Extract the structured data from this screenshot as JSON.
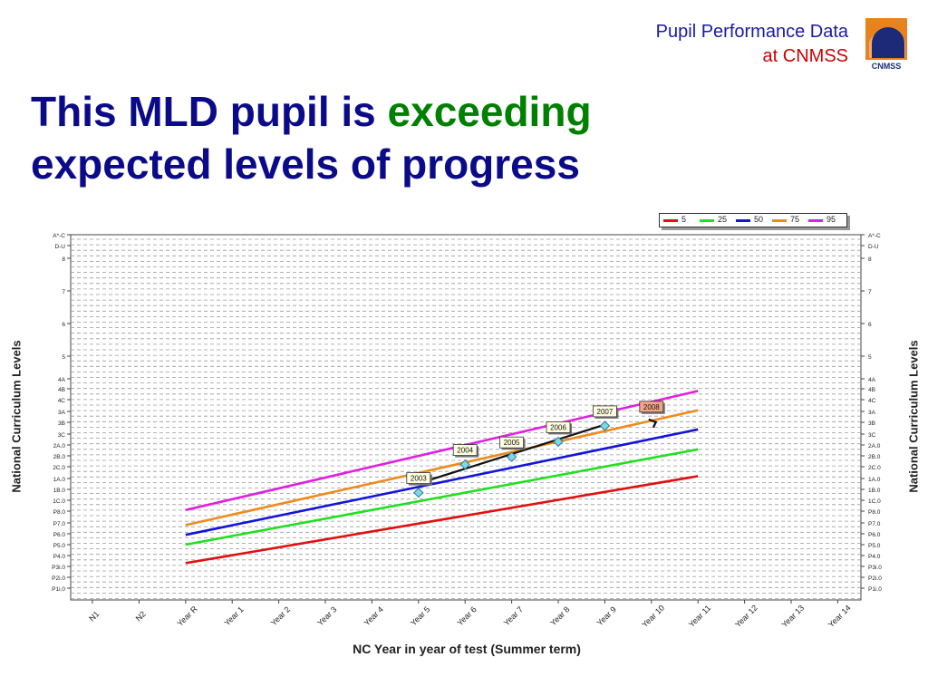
{
  "header": {
    "brand_line1": "Pupil Performance Data",
    "brand_line2": "at CNMSS",
    "logo_text": "CNMSS",
    "logo_colors": {
      "orange": "#e8821e",
      "navy": "#1c2a78"
    }
  },
  "slide": {
    "title_part1": "This MLD pupil is ",
    "title_highlight": "exceeding",
    "title_part2": "expected levels of progress",
    "title_color": "#0b0b8a",
    "highlight_color": "#008000"
  },
  "chart_data": {
    "type": "line",
    "xlabel": "NC Year in year of test (Summer term)",
    "ylabel": "National Curriculum Levels",
    "categories": [
      "N1",
      "N2",
      "Year R",
      "Year 1",
      "Year 2",
      "Year 3",
      "Year 4",
      "Year 5",
      "Year 6",
      "Year 7",
      "Year 8",
      "Year 9",
      "Year 10",
      "Year 11",
      "Year 12",
      "Year 13",
      "Year 14"
    ],
    "y_ticks": [
      "A*-C",
      "D-U",
      "8",
      "7",
      "6",
      "5",
      "4A",
      "4B",
      "4C",
      "3A",
      "3B",
      "3C",
      "2A.0",
      "2B.0",
      "2C.0",
      "1A.0",
      "1B.0",
      "1C.0",
      "P8.0",
      "P7.0",
      "P6.0",
      "P5.0",
      "P4.0",
      "P3i.0",
      "P2i.0",
      "P1i.0"
    ],
    "grid": true,
    "legend_position": "top-right",
    "series": [
      {
        "name": "5",
        "color": "#e01010",
        "values": [
          {
            "x": "Year R",
            "y": 22.7
          },
          {
            "x": "Year 11",
            "y": 14.8
          }
        ]
      },
      {
        "name": "25",
        "color": "#20e020",
        "values": [
          {
            "x": "Year R",
            "y": 21.0
          },
          {
            "x": "Year 11",
            "y": 12.4
          }
        ]
      },
      {
        "name": "50",
        "color": "#1414d8",
        "values": [
          {
            "x": "Year R",
            "y": 20.1
          },
          {
            "x": "Year 11",
            "y": 10.6
          }
        ]
      },
      {
        "name": "75",
        "color": "#f08a1c",
        "values": [
          {
            "x": "Year R",
            "y": 19.2
          },
          {
            "x": "Year 11",
            "y": 8.9
          }
        ]
      },
      {
        "name": "95",
        "color": "#e020e0",
        "values": [
          {
            "x": "Year R",
            "y": 17.9
          },
          {
            "x": "Year 11",
            "y": 7.2
          }
        ]
      }
    ],
    "pupil_points": [
      {
        "label": "2003",
        "x": "Year 5",
        "y": 16.3
      },
      {
        "label": "2004",
        "x": "Year 6",
        "y": 13.8
      },
      {
        "label": "2005",
        "x": "Year 7",
        "y": 13.1
      },
      {
        "label": "2006",
        "x": "Year 8",
        "y": 11.7
      },
      {
        "label": "2007",
        "x": "Year 9",
        "y": 10.3
      }
    ],
    "prediction": {
      "label": "2008",
      "x": "Year 10",
      "y": 9.4
    },
    "pupil_trend": {
      "from": {
        "x": "Year 5",
        "y": 15.4
      },
      "to": {
        "x": "Year 9",
        "y": 10.2
      }
    }
  }
}
